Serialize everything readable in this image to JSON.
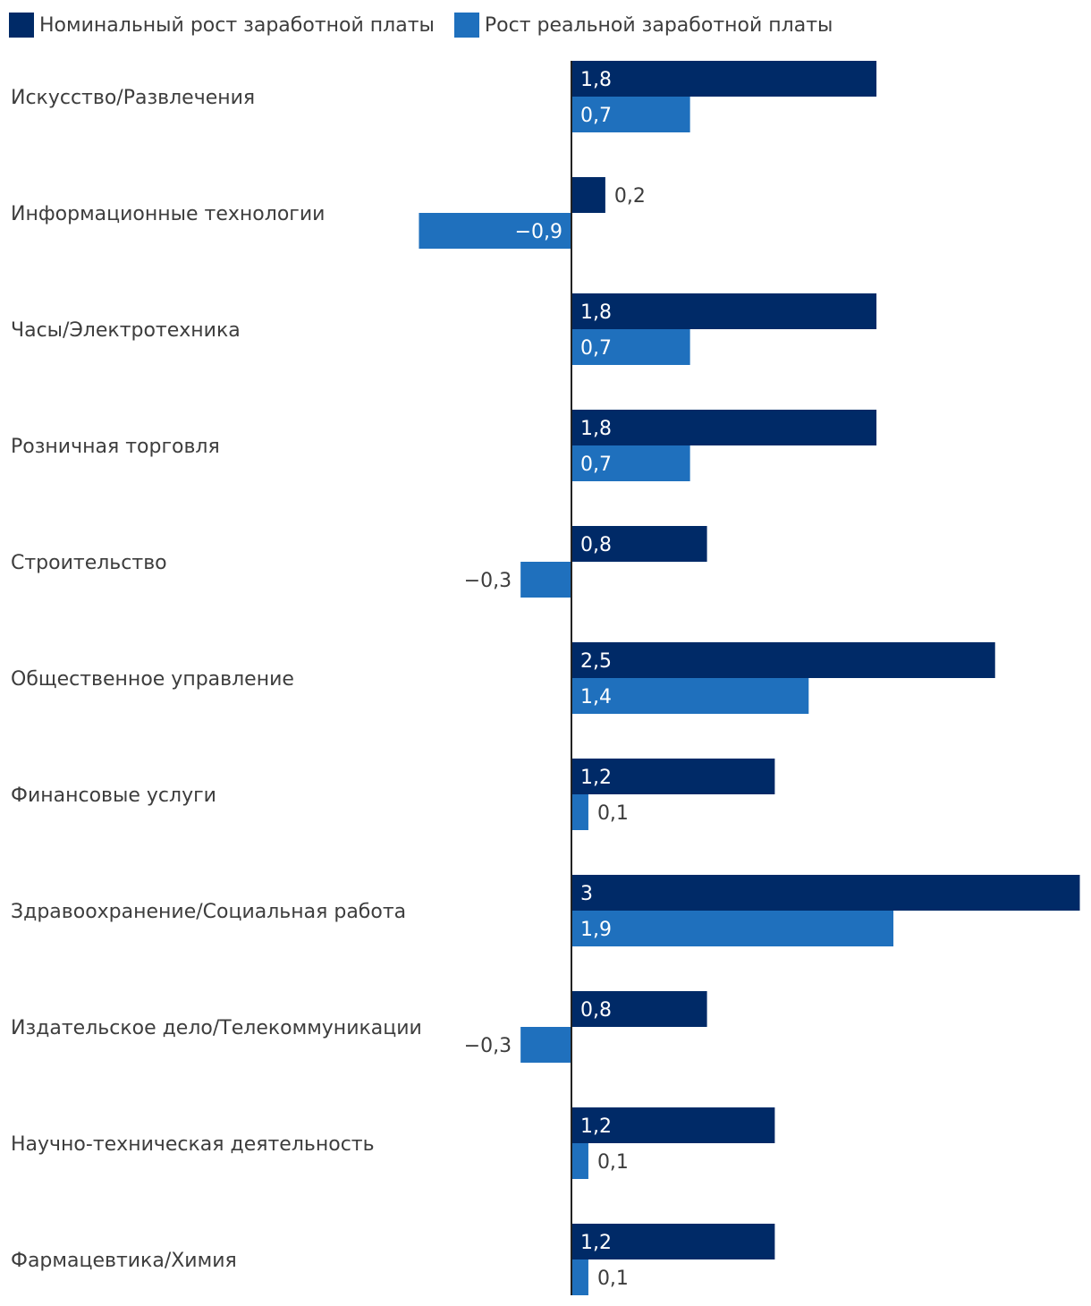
{
  "chart_data": {
    "type": "bar",
    "orientation": "horizontal",
    "categories": [
      "Искусство/Развлечения",
      "Информационные технологии",
      "Часы/Электротехника",
      "Розничная торговля",
      "Строительство",
      "Общественное управление",
      "Финансовые услуги",
      "Здравоохранение/Социальная работа",
      "Издательское дело/Телекоммуникации",
      "Научно-техническая деятельность",
      "Фармацевтика/Химия"
    ],
    "series": [
      {
        "name": "Номинальный рост заработной платы",
        "color": "#002a67",
        "values": [
          1.8,
          0.2,
          1.8,
          1.8,
          0.8,
          2.5,
          1.2,
          3,
          0.8,
          1.2,
          1.2
        ],
        "labels": [
          "1,8",
          "0,2",
          "1,8",
          "1,8",
          "0,8",
          "2,5",
          "1,2",
          "3",
          "0,8",
          "1,2",
          "1,2"
        ]
      },
      {
        "name": "Рост реальной заработной платы",
        "color": "#1f70bd",
        "values": [
          0.7,
          -0.9,
          0.7,
          0.7,
          -0.3,
          1.4,
          0.1,
          1.9,
          -0.3,
          0.1,
          0.1
        ],
        "labels": [
          "0,7",
          "−0,9",
          "0,7",
          "0,7",
          "−0,3",
          "1,4",
          "0,1",
          "1,9",
          "−0,3",
          "0,1",
          "0,1"
        ]
      }
    ],
    "xlim": [
      -1.0,
      3.0
    ],
    "grid": false,
    "legend_position": "top-left",
    "title": "",
    "xlabel": "",
    "ylabel": ""
  }
}
